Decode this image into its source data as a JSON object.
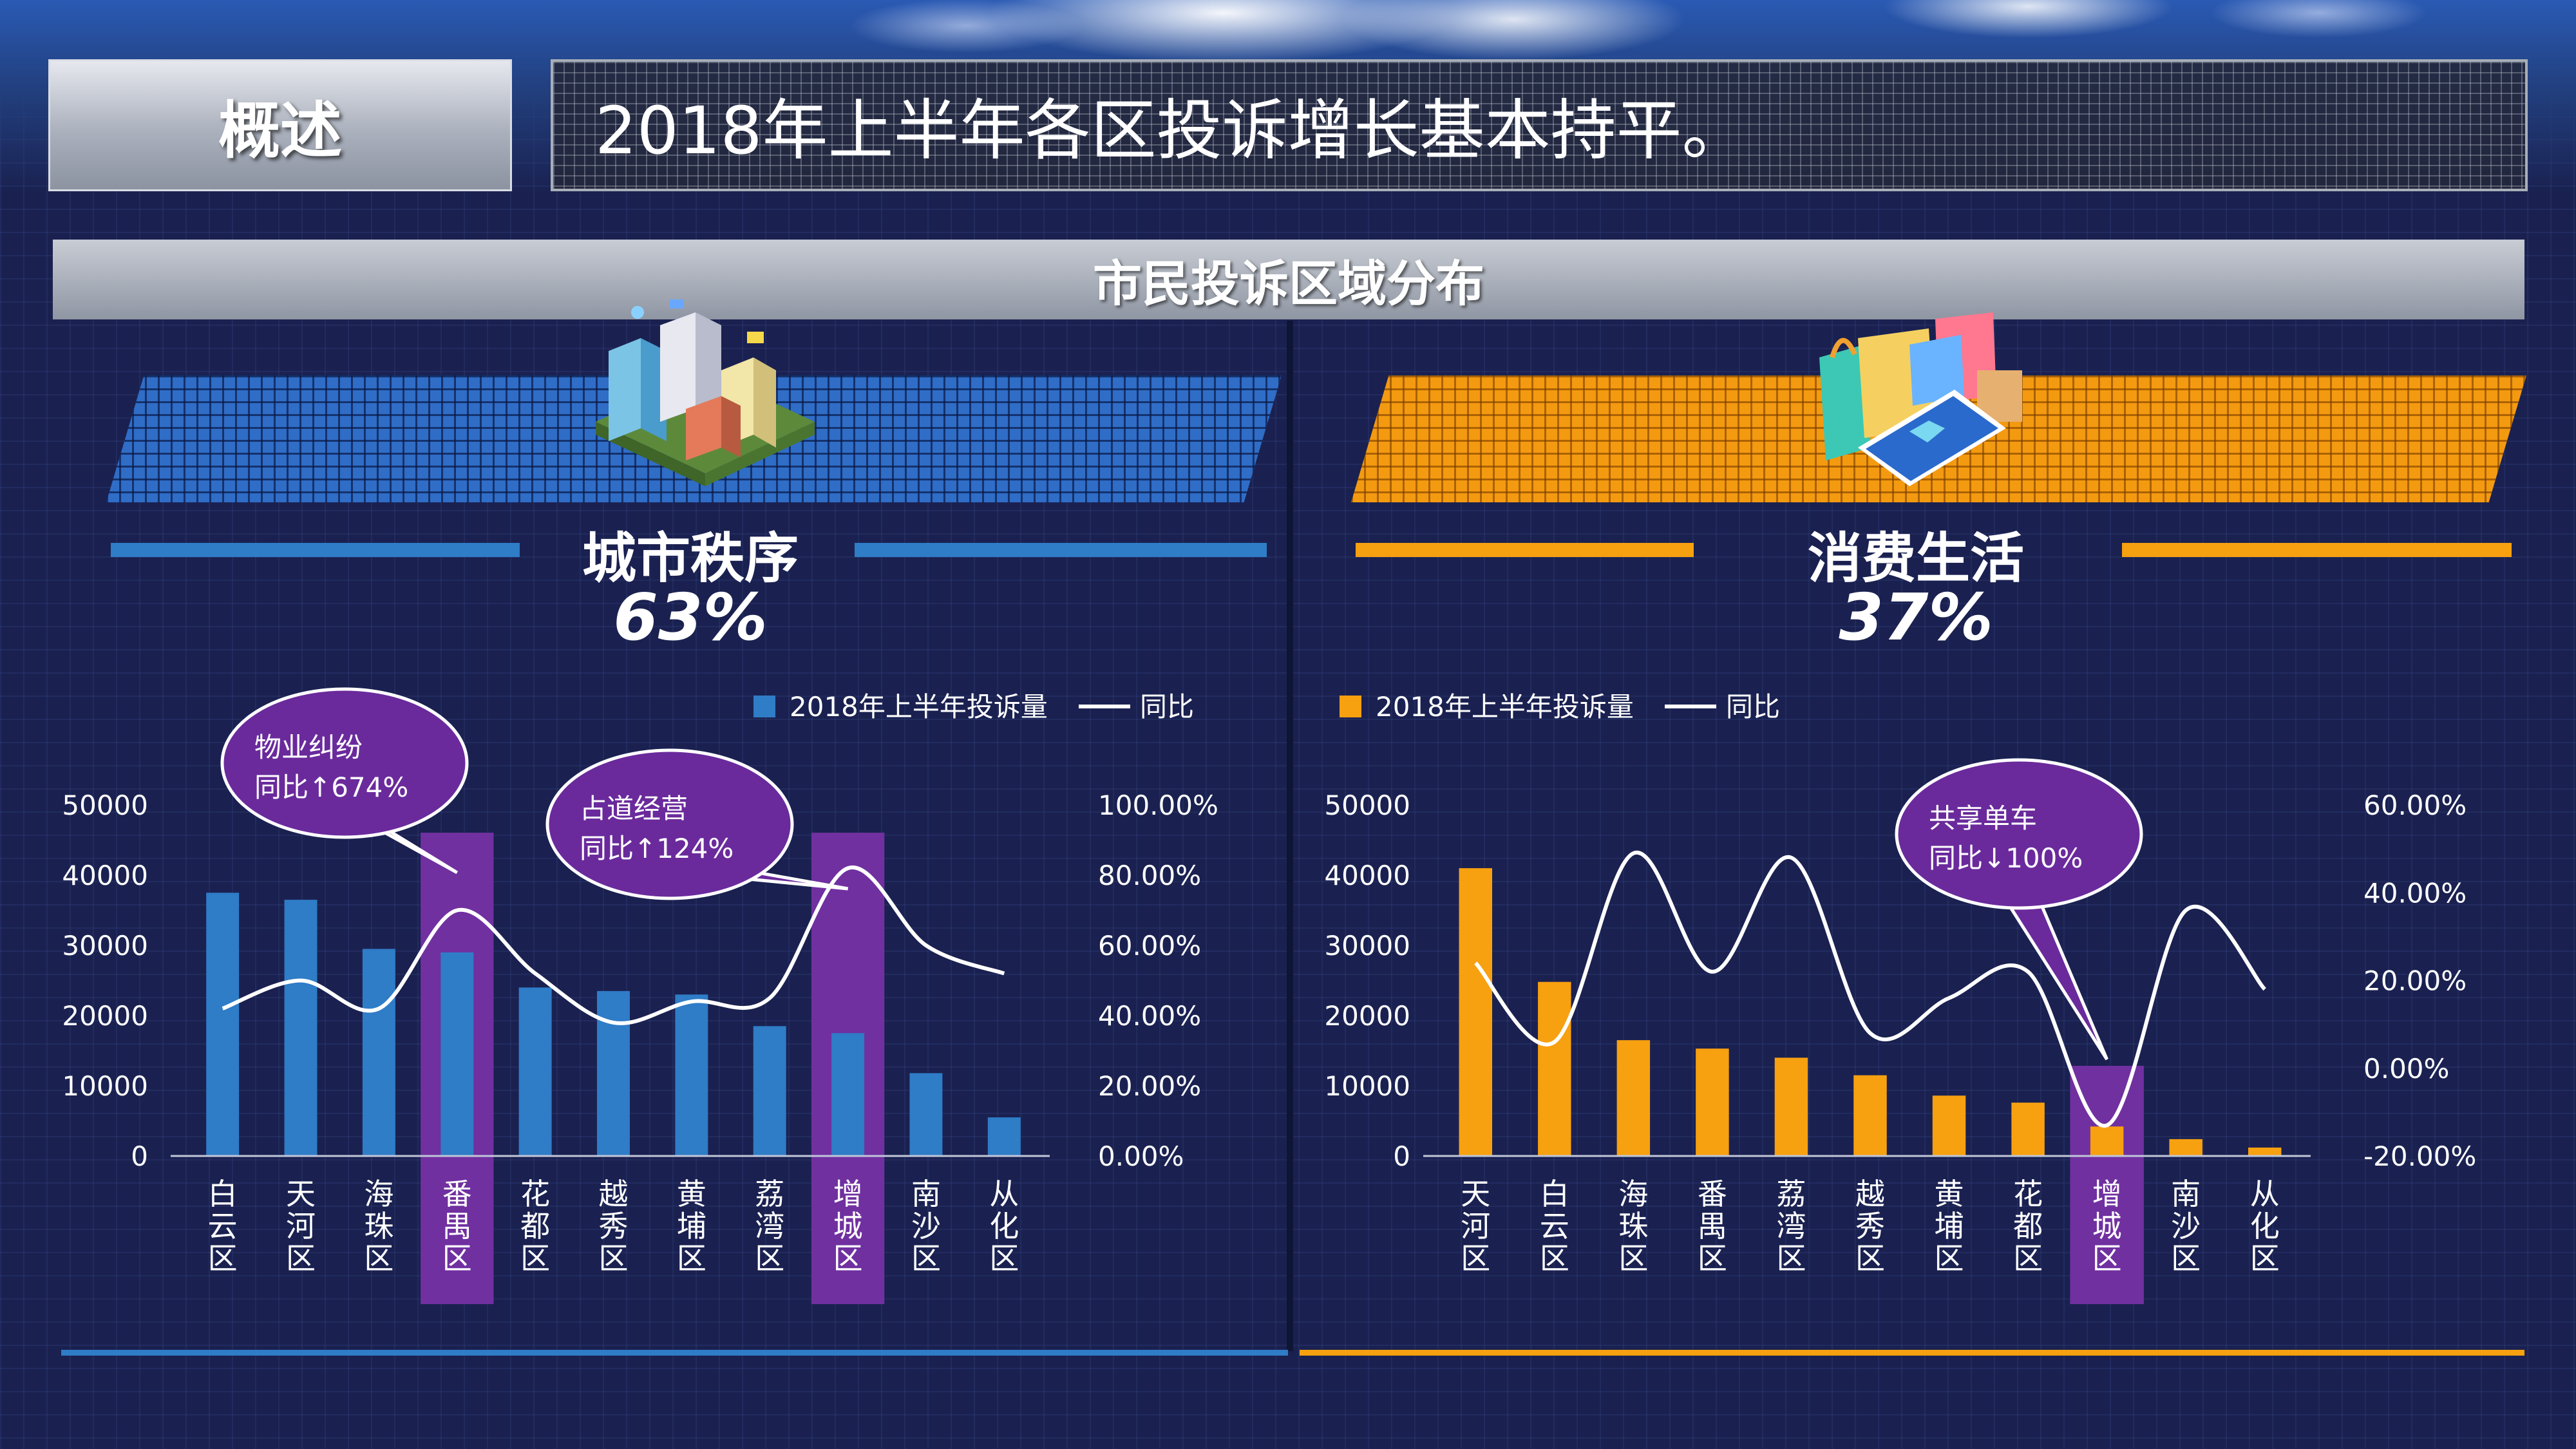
{
  "header": {
    "overview_label": "概述",
    "headline": "2018年上半年各区投诉增长基本持平。"
  },
  "section": {
    "title": "市民投诉区域分布"
  },
  "colors": {
    "blue": "#2f7cc7",
    "orange": "#f7a010",
    "purple": "#7030a0",
    "line": "#ffffff"
  },
  "left": {
    "name": "城市秩序",
    "percent": "63%",
    "icon": "city-buildings-icon"
  },
  "right": {
    "name": "消费生活",
    "percent": "37%",
    "icon": "shopping-phone-icon"
  },
  "chart_data": [
    {
      "type": "bar",
      "categories": [
        "白云区",
        "天河区",
        "海珠区",
        "番禺区",
        "花都区",
        "越秀区",
        "黄埔区",
        "荔湾区",
        "增城区",
        "南沙区",
        "从化区"
      ],
      "series": [
        {
          "name": "2018年上半年投诉量",
          "type": "bar",
          "axis": "left",
          "values": [
            37500,
            36500,
            29500,
            29000,
            24000,
            23500,
            23000,
            18500,
            17500,
            11800,
            5500
          ]
        },
        {
          "name": "同比",
          "type": "line",
          "axis": "right",
          "values": [
            42,
            50,
            42,
            70,
            52,
            38,
            44,
            45,
            82,
            60,
            52
          ]
        }
      ],
      "y_left": {
        "min": 0,
        "max": 50000,
        "ticks": [
          "0",
          "10000",
          "20000",
          "30000",
          "40000",
          "50000"
        ]
      },
      "y_right": {
        "min": 0,
        "max": 100,
        "ticks": [
          "0.00%",
          "20.00%",
          "40.00%",
          "60.00%",
          "80.00%",
          "100.00%"
        ]
      },
      "highlight_categories": [
        "番禺区",
        "增城区"
      ],
      "legend": {
        "position": "top-right",
        "bar_label": "2018年上半年投诉量",
        "line_label": "同比"
      },
      "callouts": [
        {
          "category": "番禺区",
          "line1": "物业纠纷",
          "line2": "同比↑674%"
        },
        {
          "category": "增城区",
          "line1": "占道经营",
          "line2": "同比↑124%"
        }
      ]
    },
    {
      "type": "bar",
      "categories": [
        "天河区",
        "白云区",
        "海珠区",
        "番禺区",
        "荔湾区",
        "越秀区",
        "黄埔区",
        "花都区",
        "增城区",
        "南沙区",
        "从化区"
      ],
      "series": [
        {
          "name": "2018年上半年投诉量",
          "type": "bar",
          "axis": "left",
          "values": [
            41000,
            24800,
            16500,
            15300,
            14000,
            11500,
            8600,
            7600,
            4200,
            2400,
            1200
          ]
        },
        {
          "name": "同比",
          "type": "line",
          "axis": "right",
          "values": [
            24,
            6,
            49,
            22,
            48,
            8,
            16,
            22,
            -13,
            36,
            18
          ]
        }
      ],
      "y_left": {
        "min": 0,
        "max": 50000,
        "ticks": [
          "0",
          "10000",
          "20000",
          "30000",
          "40000",
          "50000"
        ]
      },
      "y_right": {
        "min": -20,
        "max": 60,
        "ticks": [
          "-20.00%",
          "0.00%",
          "20.00%",
          "40.00%",
          "60.00%"
        ]
      },
      "highlight_categories": [
        "增城区"
      ],
      "legend": {
        "position": "top-right",
        "bar_label": "2018年上半年投诉量",
        "line_label": "同比"
      },
      "callouts": [
        {
          "category": "增城区",
          "line1": "共享单车",
          "line2": "同比↓100%"
        }
      ]
    }
  ]
}
